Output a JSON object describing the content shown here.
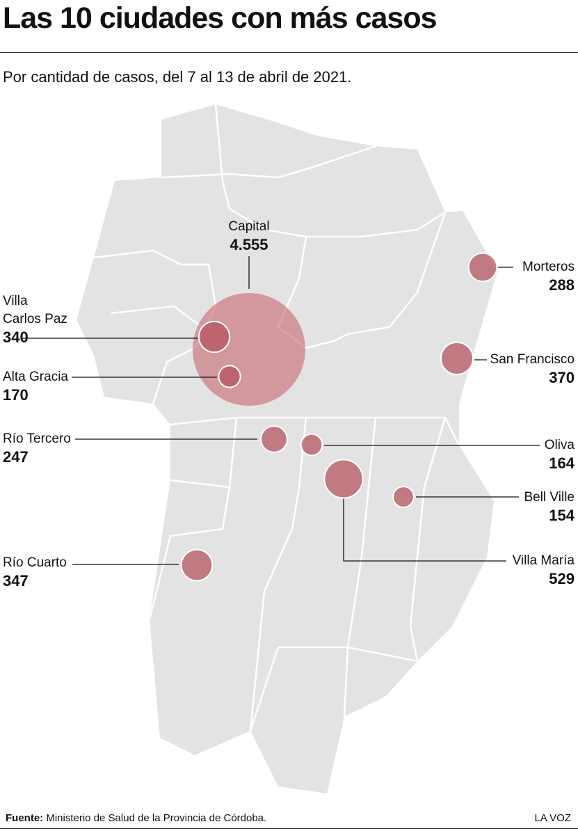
{
  "header": {
    "title": "Las 10 ciudades con más casos",
    "subtitle": "Por cantidad de casos, del 7 al 13 de abril de 2021."
  },
  "cities": [
    {
      "name": "Capital",
      "value": 4555,
      "value_label": "4.555"
    },
    {
      "name": "Villa Carlos Paz",
      "value": 340,
      "value_label": "340"
    },
    {
      "name": "Alta Gracia",
      "value": 170,
      "value_label": "170"
    },
    {
      "name": "Morteros",
      "value": 288,
      "value_label": "288"
    },
    {
      "name": "San Francisco",
      "value": 370,
      "value_label": "370"
    },
    {
      "name": "Río Tercero",
      "value": 247,
      "value_label": "247"
    },
    {
      "name": "Oliva",
      "value": 164,
      "value_label": "164"
    },
    {
      "name": "Villa María",
      "value": 529,
      "value_label": "529"
    },
    {
      "name": "Bell Ville",
      "value": 154,
      "value_label": "154"
    },
    {
      "name": "Río Cuarto",
      "value": 347,
      "value_label": "347"
    }
  ],
  "footer": {
    "source_label": "Fuente:",
    "source": "Ministerio de Salud de la Provincia de Córdoba.",
    "brand": "LA VOZ"
  }
}
